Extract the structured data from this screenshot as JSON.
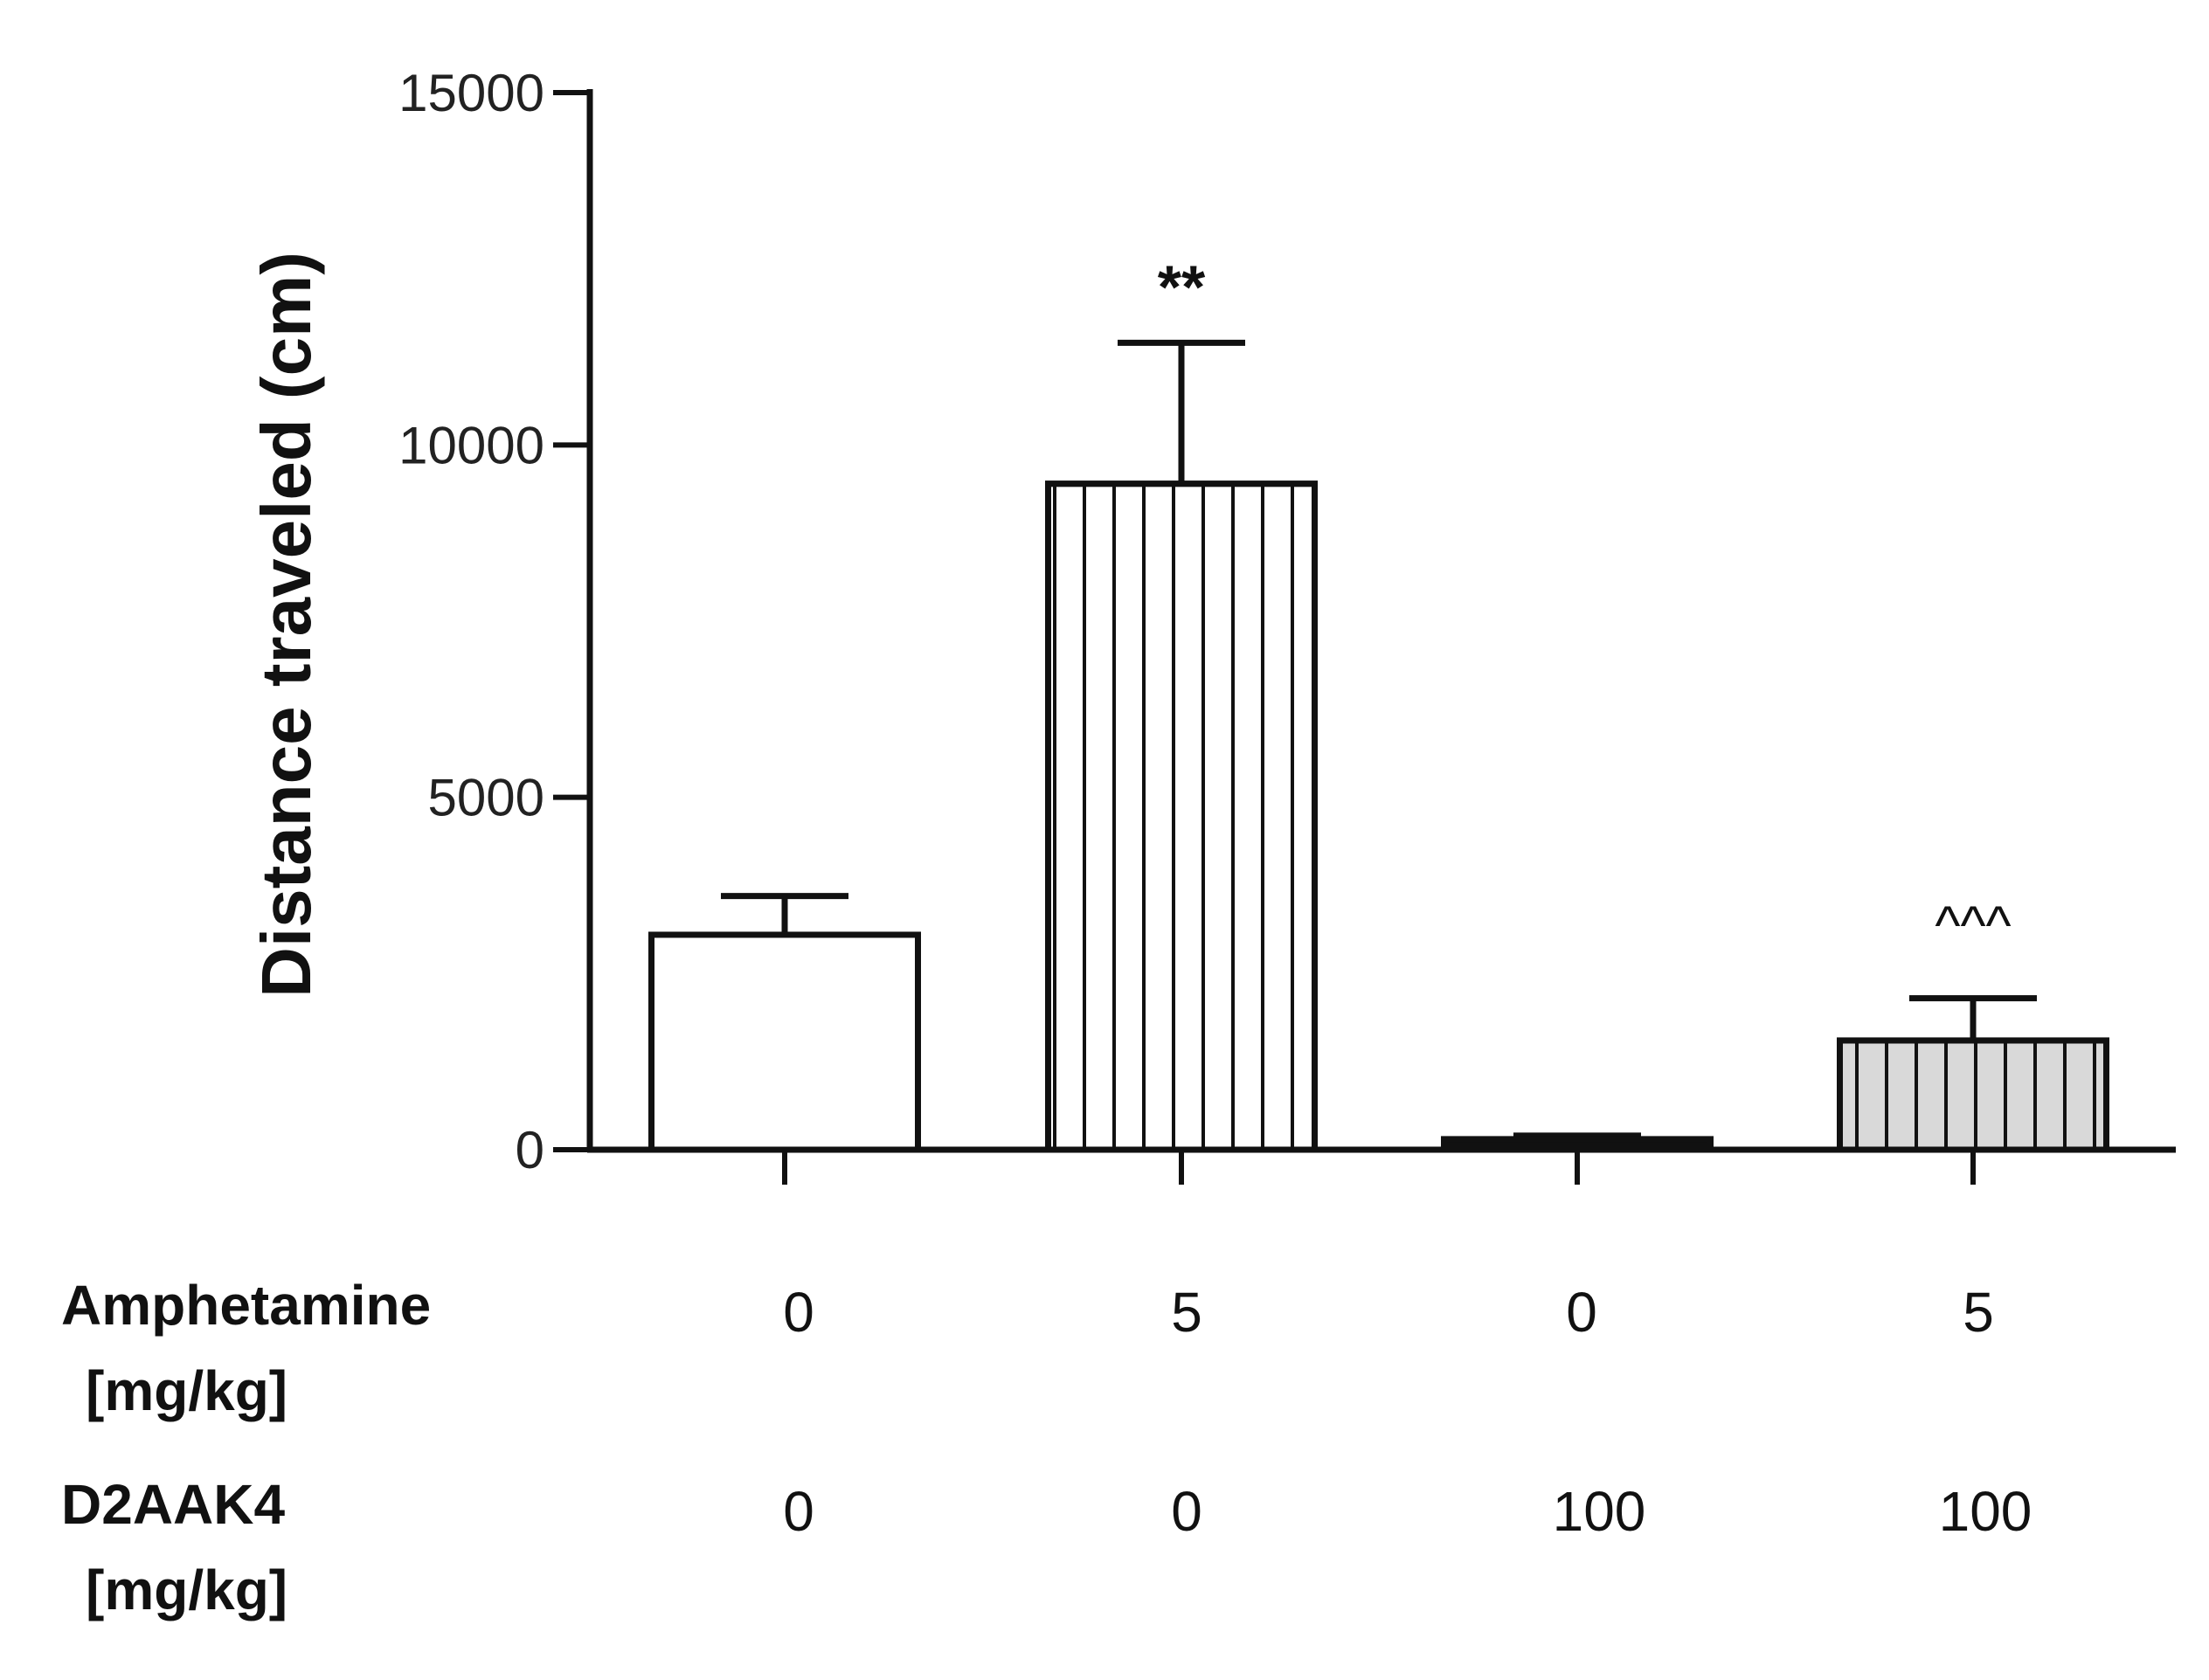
{
  "chart_data": {
    "type": "bar",
    "title": "",
    "xlabel": "",
    "ylabel": "Distance traveled (cm)",
    "ylim": [
      0,
      15000
    ],
    "yticks": [
      0,
      5000,
      10000,
      15000
    ],
    "ytick_labels": [
      "0",
      "5000",
      "10000",
      "15000"
    ],
    "grid": false,
    "bars": [
      {
        "value": 3050,
        "error": 550,
        "fill": "#ffffff",
        "pattern": "none",
        "significance": ""
      },
      {
        "value": 9450,
        "error": 2000,
        "fill": "#ffffff",
        "pattern": "vertical-lines",
        "significance": "**"
      },
      {
        "value": 150,
        "error": 50,
        "fill": "#111111",
        "pattern": "none",
        "significance": ""
      },
      {
        "value": 1550,
        "error": 600,
        "fill": "#d9d9d9",
        "pattern": "vertical-lines",
        "significance": "^^^"
      }
    ],
    "factors": [
      {
        "name": "Amphetamine",
        "unit": "[mg/kg]",
        "values": [
          "0",
          "5",
          "0",
          "5"
        ]
      },
      {
        "name": "D2AAK4",
        "unit": "[mg/kg]",
        "values": [
          "0",
          "0",
          "100",
          "100"
        ]
      }
    ]
  }
}
